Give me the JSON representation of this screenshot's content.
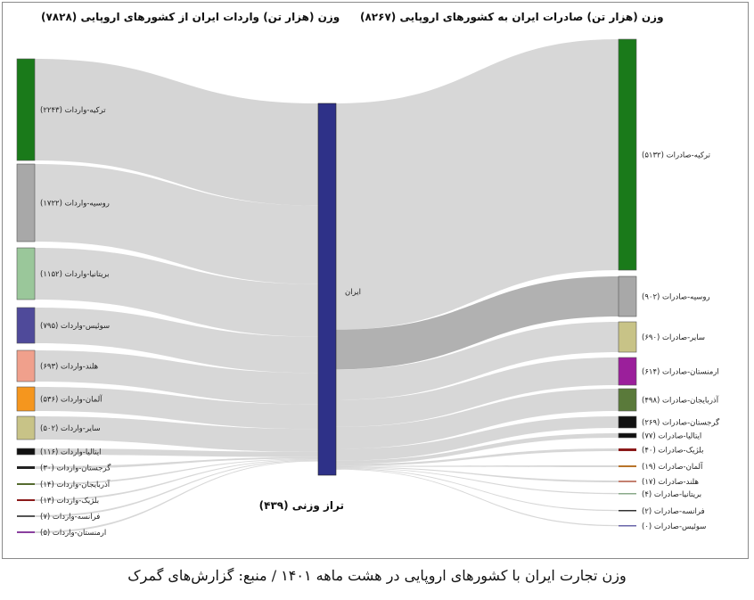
{
  "headers": {
    "imports": "وزن (هزار تن) واردات ایران از کشورهای اروپایی (۷۸۲۸)",
    "exports": "وزن (هزار تن) صادرات ایران به کشورهای اروپایی (۸۲۶۷)"
  },
  "center": {
    "label": "ایران",
    "balance_label": "تراز وزنی (۴۳۹)",
    "color": "#2e3188"
  },
  "caption": "وزن تجارت ایران با کشورهای اروپایی در هشت ماهه ۱۴۰۱ / منبع: گزارش‌های گمرک",
  "imports": [
    {
      "label": "ترکیه-واردات (۲۲۴۳)",
      "value": 2243,
      "color": "#1a7a1a"
    },
    {
      "label": "روسیه-واردات (۱۷۲۲)",
      "value": 1722,
      "color": "#a8a8a8"
    },
    {
      "label": "بریتانیا-واردات (۱۱۵۲)",
      "value": 1152,
      "color": "#9ac79a"
    },
    {
      "label": "سوئیس-واردات (۷۹۵)",
      "value": 795,
      "color": "#4f4a9a"
    },
    {
      "label": "هلند-واردات (۶۹۳)",
      "value": 693,
      "color": "#f0a08c"
    },
    {
      "label": "آلمان-واردات (۵۳۶)",
      "value": 536,
      "color": "#f5961e"
    },
    {
      "label": "سایر-واردات (۵۰۲)",
      "value": 502,
      "color": "#c8c387"
    },
    {
      "label": "ایتالیا-واردات (۱۱۶)",
      "value": 116,
      "color": "#111111"
    },
    {
      "label": "گرجستان-واردات (۳۰)",
      "value": 30,
      "color": "#222222"
    },
    {
      "label": "آذربایجان-واردات (۱۴)",
      "value": 14,
      "color": "#556b2f"
    },
    {
      "label": "بلژیک-واردات (۱۳)",
      "value": 13,
      "color": "#8b1a1a"
    },
    {
      "label": "فرانسه-واردات (۷)",
      "value": 7,
      "color": "#555555"
    },
    {
      "label": "ارمنستان-واردات (۵)",
      "value": 5,
      "color": "#8a3f9e"
    }
  ],
  "exports": [
    {
      "label": "ترکیه-صادرات (۵۱۳۲)",
      "value": 5132,
      "color": "#1a7a1a"
    },
    {
      "label": "روسیه-صادرات (۹۰۲)",
      "value": 902,
      "color": "#a8a8a8"
    },
    {
      "label": "سایر-صادرات (۶۹۰)",
      "value": 690,
      "color": "#c8c387"
    },
    {
      "label": "ارمنستان-صادرات (۶۱۴)",
      "value": 614,
      "color": "#9b1f9b"
    },
    {
      "label": "آذربایجان-صادرات (۴۹۸)",
      "value": 498,
      "color": "#5a7a3a"
    },
    {
      "label": "گرجستان-صادرات (۲۶۹)",
      "value": 269,
      "color": "#111111"
    },
    {
      "label": "ایتالیا-صادرات (۷۷)",
      "value": 77,
      "color": "#111111"
    },
    {
      "label": "بلژیک-صادرات (۴۰)",
      "value": 40,
      "color": "#8b1a1a"
    },
    {
      "label": "آلمان-صادرات (۱۹)",
      "value": 19,
      "color": "#b8742a"
    },
    {
      "label": "هلند-صادرات (۱۷)",
      "value": 17,
      "color": "#c48070"
    },
    {
      "label": "بریتانیا-صادرات (۴)",
      "value": 4,
      "color": "#8aaa8a"
    },
    {
      "label": "فرانسه-صادرات (۲)",
      "value": 2,
      "color": "#333333"
    },
    {
      "label": "سوئیس-صادرات (۰)",
      "value": 0,
      "color": "#6a66aa"
    }
  ],
  "flow_color": "#d3d3d3",
  "highlight_color": "#a9a9a9"
}
